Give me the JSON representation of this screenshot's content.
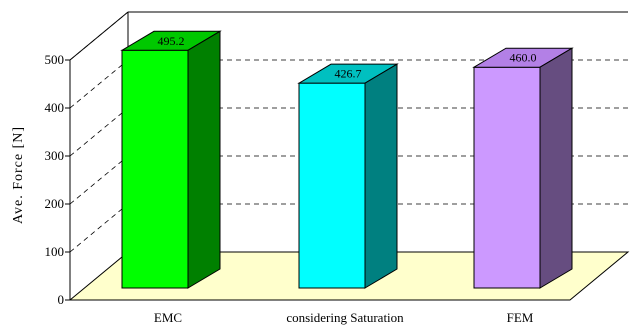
{
  "chart_data": {
    "type": "bar",
    "categories": [
      "EMC",
      "considering Saturation",
      "FEM"
    ],
    "values": [
      495.2,
      426.7,
      460.0
    ],
    "value_labels": [
      "495.2",
      "426.7",
      "460.0"
    ],
    "ylabel": "Ave. Force [N]",
    "ylim": [
      0,
      500
    ],
    "yticks": [
      "0",
      "100",
      "200",
      "300",
      "400",
      "500"
    ],
    "grid": true,
    "style": "3d",
    "colors": {
      "bars": [
        {
          "front": "#00ff00",
          "top": "#00c800",
          "side": "#008000"
        },
        {
          "front": "#00ffff",
          "top": "#00c0c0",
          "side": "#008080"
        },
        {
          "front": "#cc99ff",
          "top": "#b380e6",
          "side": "#664d80"
        }
      ],
      "floor": "#ffffcc"
    }
  }
}
